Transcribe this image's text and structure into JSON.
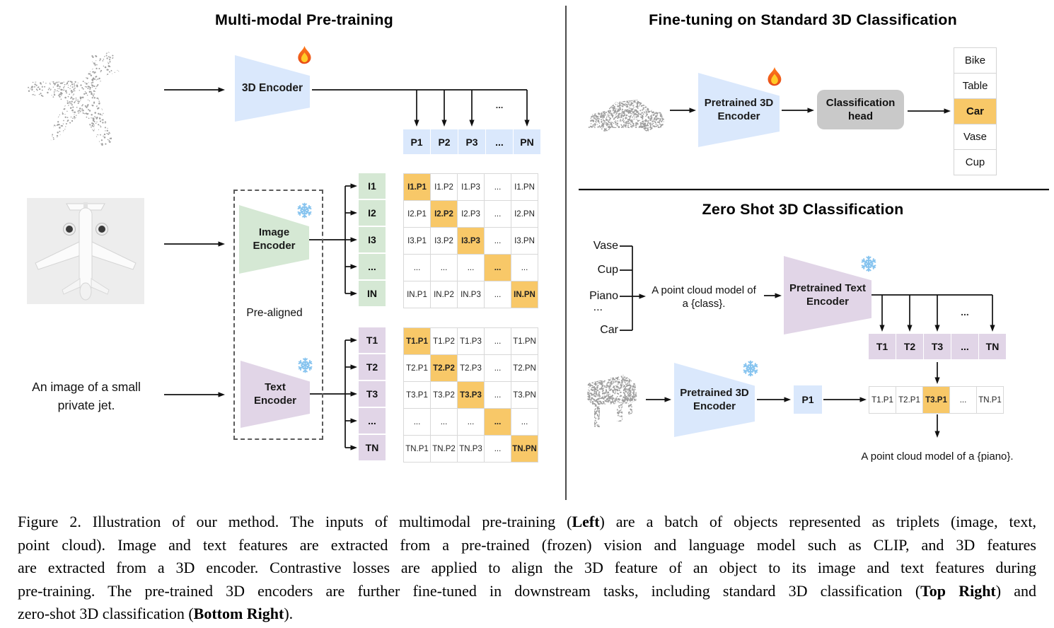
{
  "figure": {
    "left": {
      "title": "Multi-modal Pre-training",
      "encoder_3d": "3D Encoder",
      "p_row": [
        "P1",
        "P2",
        "P3",
        "...",
        "PN"
      ],
      "p_row_ellipsis": "...",
      "image_encoder": [
        "Image",
        "Encoder"
      ],
      "text_encoder": [
        "Text",
        "Encoder"
      ],
      "pre_aligned": "Pre-aligned",
      "image_caption": [
        "An image of a small",
        "private jet."
      ],
      "i_col": [
        "I1",
        "I2",
        "I3",
        "...",
        "IN"
      ],
      "t_col": [
        "T1",
        "T2",
        "T3",
        "...",
        "TN"
      ],
      "image_matrix": [
        [
          {
            "t": "I1.P1",
            "hl": true
          },
          {
            "t": "I1.P2"
          },
          {
            "t": "I1.P3"
          },
          {
            "t": "..."
          },
          {
            "t": "I1.PN"
          }
        ],
        [
          {
            "t": "I2.P1"
          },
          {
            "t": "I2.P2",
            "hl": true
          },
          {
            "t": "I2.P3"
          },
          {
            "t": "..."
          },
          {
            "t": "I2.PN"
          }
        ],
        [
          {
            "t": "I3.P1"
          },
          {
            "t": "I3.P2"
          },
          {
            "t": "I3.P3",
            "hl": true
          },
          {
            "t": "..."
          },
          {
            "t": "I3.PN"
          }
        ],
        [
          {
            "t": "..."
          },
          {
            "t": "..."
          },
          {
            "t": "..."
          },
          {
            "t": "...",
            "hl": true
          },
          {
            "t": "..."
          }
        ],
        [
          {
            "t": "IN.P1"
          },
          {
            "t": "IN.P2"
          },
          {
            "t": "IN.P3"
          },
          {
            "t": "..."
          },
          {
            "t": "IN.PN",
            "hl": true
          }
        ]
      ],
      "text_matrix": [
        [
          {
            "t": "T1.P1",
            "hl": true
          },
          {
            "t": "T1.P2"
          },
          {
            "t": "T1.P3"
          },
          {
            "t": "..."
          },
          {
            "t": "T1.PN"
          }
        ],
        [
          {
            "t": "T2.P1"
          },
          {
            "t": "T2.P2",
            "hl": true
          },
          {
            "t": "T2.P3"
          },
          {
            "t": "..."
          },
          {
            "t": "T2.PN"
          }
        ],
        [
          {
            "t": "T3.P1"
          },
          {
            "t": "T3.P2"
          },
          {
            "t": "T3.P3",
            "hl": true
          },
          {
            "t": "..."
          },
          {
            "t": "T3.PN"
          }
        ],
        [
          {
            "t": "..."
          },
          {
            "t": "..."
          },
          {
            "t": "..."
          },
          {
            "t": "...",
            "hl": true
          },
          {
            "t": "..."
          }
        ],
        [
          {
            "t": "TN.P1"
          },
          {
            "t": "TN.P2"
          },
          {
            "t": "TN.P3"
          },
          {
            "t": "..."
          },
          {
            "t": "TN.PN",
            "hl": true
          }
        ]
      ]
    },
    "top_right": {
      "title": "Fine-tuning on Standard 3D Classification",
      "encoder": [
        "Pretrained 3D",
        "Encoder"
      ],
      "classification_head": [
        "Classification",
        "head"
      ],
      "classes": [
        {
          "t": "Bike"
        },
        {
          "t": "Table"
        },
        {
          "t": "Car",
          "hl": true
        },
        {
          "t": "Vase"
        },
        {
          "t": "Cup"
        }
      ]
    },
    "bottom_right": {
      "title": "Zero Shot 3D Classification",
      "class_list": [
        "Vase",
        "Cup",
        "Piano",
        "...",
        "Car"
      ],
      "prompt": [
        "A point cloud model of",
        "a {class}."
      ],
      "text_encoder": [
        "Pretrained Text",
        "Encoder"
      ],
      "encoder_3d": [
        "Pretrained 3D",
        "Encoder"
      ],
      "t_row": [
        "T1",
        "T2",
        "T3",
        "...",
        "TN"
      ],
      "t_row_ellipsis": "...",
      "p1": "P1",
      "result_row": [
        {
          "t": "T1.P1"
        },
        {
          "t": "T2.P1"
        },
        {
          "t": "T3.P1",
          "hl": true
        },
        {
          "t": "..."
        },
        {
          "t": "TN.P1"
        }
      ],
      "result_caption": "A point cloud model of a {piano}."
    }
  },
  "caption": {
    "lines": [
      [
        {
          "t": "Figure 2. Illustration of our method. The inputs of multimodal pre-training ("
        },
        {
          "t": "Left",
          "b": true
        },
        {
          "t": ") are a batch of objects represented as triplets (image, text,"
        }
      ],
      [
        {
          "t": "point cloud). Image and text features are extracted from a pre-trained (frozen) vision and language model such as CLIP, and 3D features"
        }
      ],
      [
        {
          "t": "are extracted from a 3D encoder. Contrastive losses are applied to align the 3D feature of an object to its image and text features during"
        }
      ],
      [
        {
          "t": "pre-training. The pre-trained 3D encoders are further fine-tuned in downstream tasks, including standard 3D classification ("
        },
        {
          "t": "Top Right",
          "b": true
        },
        {
          "t": ") and"
        }
      ],
      [
        {
          "t": "zero-shot 3D classification ("
        },
        {
          "t": "Bottom Right",
          "b": true
        },
        {
          "t": ")."
        }
      ]
    ]
  },
  "colors": {
    "encoder_blue": "#dae8fc",
    "encoder_green": "#d5e8d4",
    "encoder_purple": "#e1d5e7",
    "highlight_orange": "#f8c868",
    "head_gray": "#c9c9c9"
  },
  "icons": {
    "trainable": "flame-icon",
    "frozen": "snowflake-icon"
  }
}
